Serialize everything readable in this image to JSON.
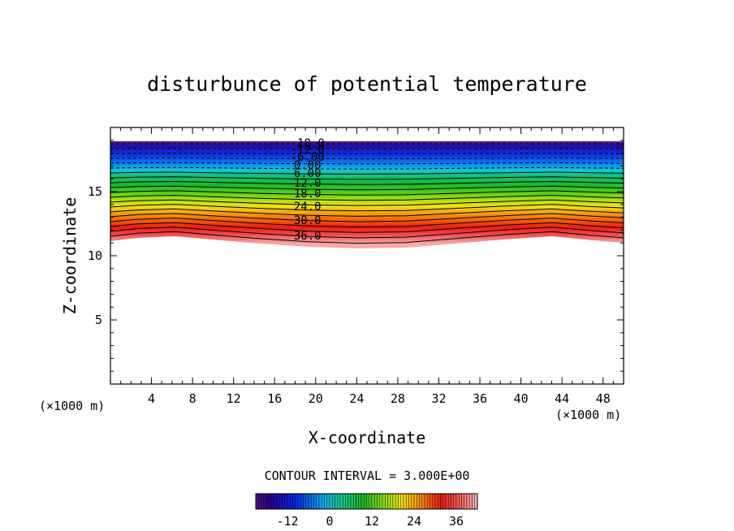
{
  "chart_data": {
    "type": "contour",
    "title": "disturbunce of potential temperature",
    "xlabel": "X-coordinate",
    "ylabel": "Z-coordinate",
    "x_unit": "(×1000 m)",
    "y_unit": "(×1000 m)",
    "xlim": [
      0,
      50
    ],
    "ylim": [
      0,
      20
    ],
    "x_ticks": [
      "4",
      "8",
      "12",
      "16",
      "20",
      "24",
      "28",
      "32",
      "36",
      "40",
      "44",
      "48"
    ],
    "y_ticks": [
      "5",
      "10",
      "15"
    ],
    "contour_interval_text": "CONTOUR INTERVAL = 3.000E+00",
    "contour_levels": [
      -18,
      -15,
      -12,
      -9,
      -6,
      -3,
      0,
      3,
      6,
      9,
      12,
      15,
      18,
      21,
      24,
      27,
      30,
      33,
      36,
      39
    ],
    "contour_labels": [
      "-18.0",
      "-12.0",
      "-6.00",
      "0.00",
      "6.00",
      "12.0",
      "18.0",
      "24.0",
      "30.0",
      "36.0"
    ],
    "colorbar_ticks": [
      "-12",
      "0",
      "12",
      "24",
      "36"
    ],
    "colorbar_range": [
      -21,
      42
    ]
  }
}
